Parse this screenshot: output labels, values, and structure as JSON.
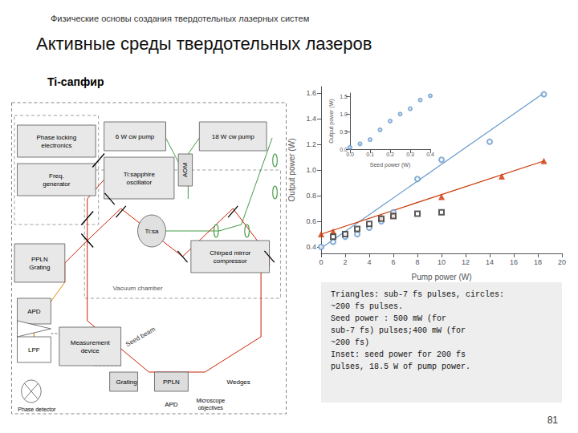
{
  "chart_data": [
    {
      "type": "scatter",
      "title": "Активные среды твердотельных лазеров",
      "subtitle": "Ti-сапфир",
      "annotations": [
        "Физические основы создания твердотельных лазерных систем",
        "81",
        "Triangles: sub-7 fs pulses, circles:\n~200 fs pulses.\nSeed power : 500 mW (for\nsub-7 fs) pulses;400 mW (for\n~200 fs)\nInset: seed power for 200 fs\npulses, 18.5 W of pump power.",
        "Phase locking\nelectronics",
        "Freq.\ngenerator",
        "6 W cw pump",
        "AOM",
        "18 W cw pump",
        "Ti:sapphire\noscillator",
        "Vacuum chamber",
        "Ti:sa",
        "Chirped mirror\ncompressor",
        "PPLN\nGrating",
        "APD",
        "LPF",
        "Measurement\ndevice",
        "Grating",
        "PPLN",
        "Wedges",
        "APD",
        "Microscope\nobjectives",
        "Phase detector",
        "Seed beam"
      ],
      "xlabel": "Pump power (W)",
      "ylabel": "Output power (W)",
      "xlim": [
        0,
        20
      ],
      "ylim": [
        0.35,
        1.65
      ],
      "xticks": [
        0,
        2,
        4,
        6,
        8,
        10,
        12,
        14,
        16,
        18,
        20
      ],
      "yticks": [
        0.4,
        0.6,
        0.8,
        {
          "value": 1.0,
          "label": "1.0"
        },
        1.2,
        1.4,
        1.6
      ],
      "grid": false,
      "series": [
        {
          "type": "line",
          "color": "#6699cc",
          "x": [
            0,
            18.5
          ],
          "values": [
            0.39,
            1.6
          ]
        },
        {
          "type": "scatter",
          "color": "#6699cc",
          "marker": "circle",
          "x": [
            0,
            1,
            2,
            3,
            4,
            5,
            6,
            8,
            10,
            14,
            18.5
          ],
          "values": [
            0.4,
            0.44,
            0.48,
            0.5,
            0.55,
            0.6,
            0.67,
            0.93,
            1.08,
            1.22,
            1.59
          ]
        },
        {
          "type": "line",
          "color": "#cc3300",
          "x": [
            0,
            18.5
          ],
          "values": [
            0.5,
            1.07
          ]
        },
        {
          "type": "scatter",
          "color": "#cc3300",
          "marker": "triangle",
          "x": [
            0,
            1,
            5,
            6,
            10,
            15,
            18.5
          ],
          "values": [
            0.5,
            0.52,
            0.63,
            0.65,
            0.79,
            0.95,
            1.07
          ]
        },
        {
          "type": "scatter",
          "color": "#333333",
          "marker": "square",
          "x": [
            1,
            2,
            3,
            4,
            5,
            6,
            8,
            10
          ],
          "values": [
            0.48,
            0.5,
            0.54,
            0.58,
            0.62,
            0.64,
            0.66,
            0.67
          ]
        }
      ]
    },
    {
      "type": "scatter",
      "xlabel": "Seed power (W)",
      "ylabel": "Output power (W)",
      "xlim": [
        0,
        0.4
      ],
      "ylim": [
        0,
        1.6
      ],
      "xticks": [
        {
          "value": 0,
          "label": "0.0"
        },
        0.1,
        0.2,
        0.3,
        0.4
      ],
      "yticks": [
        {
          "value": 0,
          "label": "0.0"
        },
        0.5,
        {
          "value": 1.0,
          "label": "1.0"
        },
        1.5
      ],
      "grid": false,
      "marker": "circle",
      "color": "#6699cc",
      "x": [
        0,
        0.05,
        0.1,
        0.15,
        0.2,
        0.25,
        0.3,
        0.35,
        0.4
      ],
      "values": [
        0.05,
        0.15,
        0.27,
        0.55,
        0.8,
        1.0,
        1.15,
        1.4,
        1.52
      ]
    }
  ]
}
